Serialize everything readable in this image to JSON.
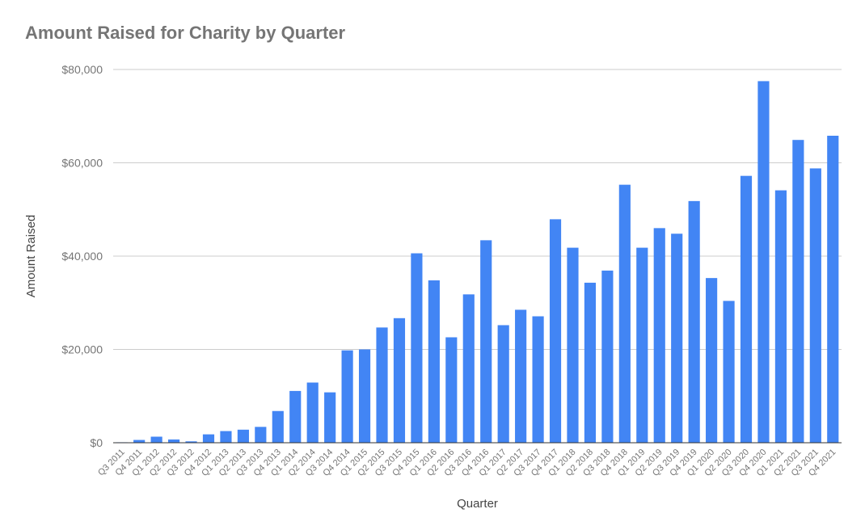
{
  "chart_data": {
    "type": "bar",
    "title": "Amount Raised for Charity by Quarter",
    "xlabel": "Quarter",
    "ylabel": "Amount Raised",
    "ylim": [
      0,
      80000
    ],
    "yticks": [
      {
        "value": 0,
        "label": "$0"
      },
      {
        "value": 20000,
        "label": "$20,000"
      },
      {
        "value": 40000,
        "label": "$40,000"
      },
      {
        "value": 60000,
        "label": "$60,000"
      },
      {
        "value": 80000,
        "label": "$80,000"
      }
    ],
    "grid": true,
    "bar_color": "#4285f4",
    "categories": [
      "Q3 2011",
      "Q4 2011",
      "Q1 2012",
      "Q2 2012",
      "Q3 2012",
      "Q4 2012",
      "Q1 2013",
      "Q2 2013",
      "Q3 2013",
      "Q4 2013",
      "Q1 2014",
      "Q2 2014",
      "Q3 2014",
      "Q4 2014",
      "Q1 2015",
      "Q2 2015",
      "Q3 2015",
      "Q4 2015",
      "Q1 2016",
      "Q2 2016",
      "Q3 2016",
      "Q4 2016",
      "Q1 2017",
      "Q2 2017",
      "Q3 2017",
      "Q4 2017",
      "Q1 2018",
      "Q2 2018",
      "Q3 2018",
      "Q4 2018",
      "Q1 2019",
      "Q2 2019",
      "Q3 2019",
      "Q4 2019",
      "Q1 2020",
      "Q2 2020",
      "Q3 2020",
      "Q4 2020",
      "Q1 2021",
      "Q2 2021",
      "Q3 2021",
      "Q4 2021"
    ],
    "values": [
      100,
      600,
      1300,
      700,
      300,
      1800,
      2500,
      2800,
      3400,
      6800,
      11100,
      12900,
      10800,
      19800,
      20000,
      24700,
      26700,
      40600,
      34800,
      22600,
      31800,
      43400,
      25200,
      28500,
      27100,
      47900,
      41800,
      34300,
      36900,
      55300,
      41800,
      46000,
      44800,
      51800,
      35300,
      30400,
      57200,
      77500,
      54100,
      64900,
      58800,
      65800
    ]
  }
}
